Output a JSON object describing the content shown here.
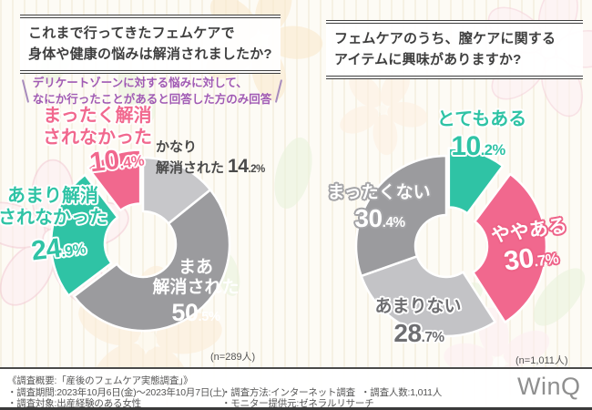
{
  "left_panel": {
    "title_lines": [
      "これまで行ってきたフェムケアで",
      "身体や健康の悩みは解消されましたか?"
    ],
    "note_lines": [
      "デリケートゾーンに対する悩みに対して、",
      "なにか行ったことがあると回答した方のみ回答"
    ],
    "sample_label": "(n=289人)"
  },
  "right_panel": {
    "title_lines": [
      "フェムケアのうち、膣ケアに関する",
      "アイテムに興味がありますか?"
    ],
    "sample_label": "(n=1,011人)"
  },
  "chart_data": [
    {
      "type": "pie",
      "variant": "donut",
      "title": "これまで行ってきたフェムケアで身体や健康の悩みは解消されましたか?",
      "note": "デリケートゾーンに対する悩みに対して、なにか行ったことがあると回答した方のみ回答",
      "n_label": "(n=289人)",
      "n": 289,
      "start": "12時の位置から時計回り",
      "slices": [
        {
          "label": "かなり解消された",
          "value": 14.2,
          "color": "#c7c7ca",
          "display_lines": [
            "かなり",
            "解消された"
          ]
        },
        {
          "label": "まあ解消された",
          "value": 50.5,
          "color": "#9b9b9e",
          "display_lines": [
            "まあ",
            "解消された"
          ]
        },
        {
          "label": "あまり解消されなかった",
          "value": 24.9,
          "color": "#2fc3a5",
          "display_lines": [
            "あまり解消",
            "されなかった"
          ]
        },
        {
          "label": "まったく解消されなかった",
          "value": 10.4,
          "color": "#f1688e",
          "display_lines": [
            "まったく解消",
            "されなかった"
          ]
        }
      ]
    },
    {
      "type": "pie",
      "variant": "donut",
      "title": "フェムケアのうち、膣ケアに関するアイテムに興味がありますか?",
      "n_label": "(n=1,011人)",
      "n": 1011,
      "start": "12時の位置から時計回り",
      "slices": [
        {
          "label": "とてもある",
          "value": 10.2,
          "color": "#2fc3a5",
          "display_lines": [
            "とてもある"
          ]
        },
        {
          "label": "ややある",
          "value": 30.7,
          "color": "#f1688e",
          "display_lines": [
            "ややある"
          ]
        },
        {
          "label": "あまりない",
          "value": 28.7,
          "color": "#c3c3c6",
          "display_lines": [
            "あまりない"
          ]
        },
        {
          "label": "まったくない",
          "value": 30.4,
          "color": "#9b9b9e",
          "display_lines": [
            "まったくない"
          ]
        }
      ]
    }
  ],
  "footer": {
    "summary": "《調査概要:「産後のフェムケア実態調査」》",
    "period": "・調査期間:2023年10月6日(金)〜2023年10月7日(土)",
    "target": "・調査対象:出産経験のある女性",
    "method": "・調査方法:インターネット調査",
    "monitor": "・モニター提供元:ゼネラルリサーチ",
    "count": "・調査人数:1,011人",
    "logo": "WinQ"
  },
  "colors": {
    "pink": "#f1688e",
    "teal": "#2fc3a5",
    "gray_dark": "#9b9b9e",
    "gray_light": "#c7c7ca",
    "note_purple": "#a05ab4",
    "title_text": "#3f3f3f",
    "footer_text": "#555555",
    "logo_gray": "#8f8f8f"
  }
}
